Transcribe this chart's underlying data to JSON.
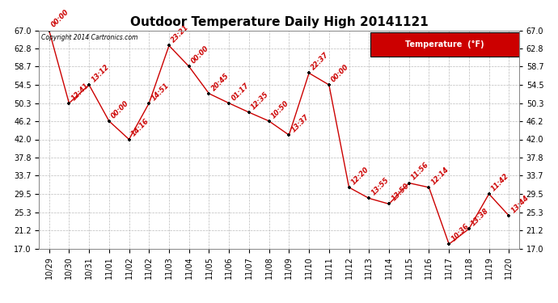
{
  "title": "Outdoor Temperature Daily High 20141121",
  "copyright_text": "Copyright 2014 Cartronics.com",
  "legend_label": "Temperature  (°F)",
  "x_labels": [
    "10/29",
    "10/30",
    "10/31",
    "11/01",
    "11/02",
    "11/02",
    "11/03",
    "11/04",
    "11/05",
    "11/06",
    "11/07",
    "11/08",
    "11/09",
    "11/10",
    "11/11",
    "11/12",
    "11/13",
    "11/14",
    "11/15",
    "11/16",
    "11/17",
    "11/18",
    "11/19",
    "11/20"
  ],
  "temperatures": [
    67.0,
    50.3,
    54.5,
    46.2,
    42.0,
    50.3,
    63.5,
    58.7,
    52.5,
    50.3,
    48.2,
    46.2,
    43.0,
    57.2,
    54.5,
    31.0,
    28.5,
    27.2,
    32.0,
    31.0,
    18.0,
    21.5,
    29.5,
    24.5
  ],
  "time_labels": [
    "00:00",
    "12:41",
    "13:12",
    "00:00",
    "14:16",
    "14:51",
    "23:21",
    "00:00",
    "20:45",
    "01:17",
    "12:35",
    "10:50",
    "13:37",
    "22:37",
    "00:00",
    "12:20",
    "13:55",
    "13:50",
    "11:56",
    "12:14",
    "10:36",
    "13:38",
    "11:42",
    "13:44"
  ],
  "ylim_min": 17.0,
  "ylim_max": 67.0,
  "yticks": [
    17.0,
    21.2,
    25.3,
    29.5,
    33.7,
    37.8,
    42.0,
    46.2,
    50.3,
    54.5,
    58.7,
    62.8,
    67.0
  ],
  "line_color": "#cc0000",
  "marker_color": "#000000",
  "bg_color": "#ffffff",
  "grid_color": "#bbbbbb",
  "title_fontsize": 11,
  "axis_fontsize": 7,
  "time_label_fontsize": 6,
  "legend_bg": "#cc0000",
  "legend_fg": "#ffffff",
  "legend_text_fontsize": 7
}
